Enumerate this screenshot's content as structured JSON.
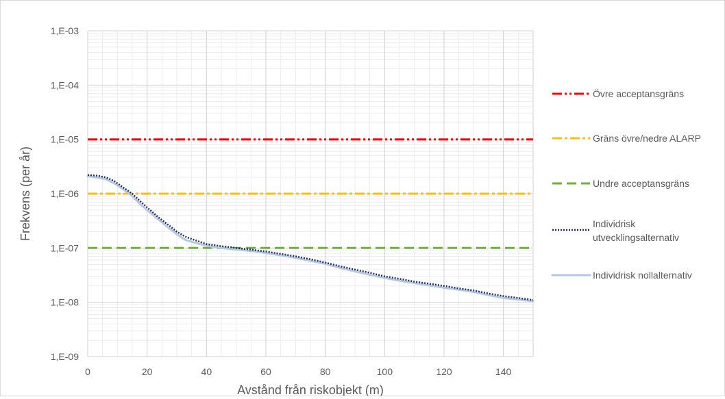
{
  "chart_data": {
    "type": "line",
    "xlabel": "Avstånd från riskobjekt (m)",
    "ylabel": "Frekvens (per år)",
    "y_scale": "log",
    "xlim": [
      0,
      150
    ],
    "ylim": [
      1e-09,
      0.001
    ],
    "grid": "major and minor",
    "legend_position": "right",
    "x_ticks": [
      0,
      20,
      40,
      60,
      80,
      100,
      120,
      140
    ],
    "x_tick_labels": [
      "0",
      "20",
      "40",
      "60",
      "80",
      "100",
      "120",
      "140"
    ],
    "y_ticks": [
      0.001,
      0.0001,
      1e-05,
      1e-06,
      1e-07,
      1e-08,
      1e-09
    ],
    "y_tick_labels": [
      "1,E-03",
      "1,E-04",
      "1,E-05",
      "1,E-06",
      "1,E-07",
      "1,E-08",
      "1,E-09"
    ],
    "series": [
      {
        "name": "Övre acceptansgräns",
        "color": "#ff0000",
        "style": "dash-dot-dot",
        "x": [
          0,
          150
        ],
        "y": [
          1e-05,
          1e-05
        ]
      },
      {
        "name": "Gräns övre/nedre ALARP",
        "color": "#ffc000",
        "style": "dash-dot",
        "x": [
          0,
          150
        ],
        "y": [
          1e-06,
          1e-06
        ]
      },
      {
        "name": "Undre acceptansgräns",
        "color": "#70ad47",
        "style": "dash",
        "x": [
          0,
          150
        ],
        "y": [
          1e-07,
          1e-07
        ]
      },
      {
        "name": "Individrisk utvecklingsalternativ",
        "label_lines": [
          "Individrisk",
          "utvecklingsalternativ"
        ],
        "color": "#1f2f5a",
        "style": "dotted",
        "x": [
          0,
          3,
          6,
          9,
          12,
          15,
          18,
          21,
          24,
          27,
          30,
          33,
          36,
          40,
          45,
          50,
          55,
          60,
          65,
          70,
          75,
          80,
          85,
          90,
          95,
          100,
          105,
          110,
          115,
          120,
          125,
          130,
          135,
          140,
          145,
          150
        ],
        "y": [
          2.2e-06,
          2.15e-06,
          2e-06,
          1.7e-06,
          1.3e-06,
          1e-06,
          7e-07,
          5e-07,
          3.6e-07,
          2.7e-07,
          2e-07,
          1.6e-07,
          1.4e-07,
          1.18e-07,
          1.08e-07,
          1e-07,
          9.3e-08,
          8.6e-08,
          7.8e-08,
          7e-08,
          6.2e-08,
          5.4e-08,
          4.6e-08,
          4e-08,
          3.5e-08,
          3e-08,
          2.7e-08,
          2.4e-08,
          2.2e-08,
          2e-08,
          1.8e-08,
          1.65e-08,
          1.45e-08,
          1.3e-08,
          1.2e-08,
          1.1e-08
        ]
      },
      {
        "name": "Individrisk nollalternativ",
        "color": "#b4c7e7",
        "style": "solid",
        "x": [
          0,
          3,
          6,
          9,
          12,
          15,
          18,
          21,
          24,
          27,
          30,
          33,
          36,
          40,
          45,
          50,
          55,
          60,
          65,
          70,
          75,
          80,
          85,
          90,
          95,
          100,
          105,
          110,
          115,
          120,
          125,
          130,
          135,
          140,
          145,
          150
        ],
        "y": [
          2.1e-06,
          2e-06,
          1.85e-06,
          1.55e-06,
          1.2e-06,
          9e-07,
          6.2e-07,
          4.5e-07,
          3.3e-07,
          2.4e-07,
          1.8e-07,
          1.4e-07,
          1.25e-07,
          1.1e-07,
          1e-07,
          9.4e-08,
          8.8e-08,
          8.1e-08,
          7.3e-08,
          6.6e-08,
          5.8e-08,
          5.1e-08,
          4.3e-08,
          3.7e-08,
          3.2e-08,
          2.8e-08,
          2.5e-08,
          2.25e-08,
          2.05e-08,
          1.85e-08,
          1.7e-08,
          1.55e-08,
          1.35e-08,
          1.2e-08,
          1.12e-08,
          1.05e-08
        ]
      }
    ]
  }
}
